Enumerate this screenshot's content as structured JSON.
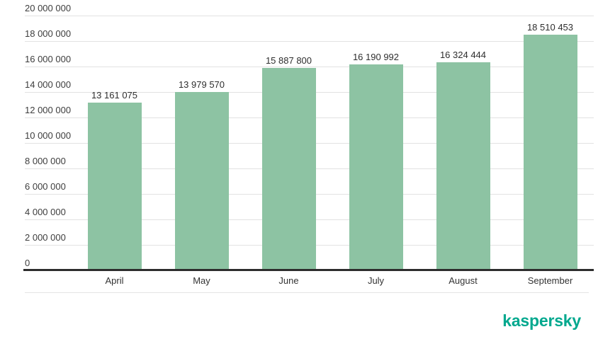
{
  "chart_data": {
    "type": "bar",
    "categories": [
      "April",
      "May",
      "June",
      "July",
      "August",
      "September"
    ],
    "values": [
      13161075,
      13979570,
      15887800,
      16190992,
      16324444,
      18510453
    ],
    "value_labels": [
      "13 161 075",
      "13 979 570",
      "15 887 800",
      "16 190 992",
      "16 324 444",
      "18 510 453"
    ],
    "y_ticks": [
      {
        "value": 0,
        "label": "0"
      },
      {
        "value": 2000000,
        "label": "2 000 000"
      },
      {
        "value": 4000000,
        "label": "4 000 000"
      },
      {
        "value": 6000000,
        "label": "6 000 000"
      },
      {
        "value": 8000000,
        "label": "8 000 000"
      },
      {
        "value": 10000000,
        "label": "10 000 000"
      },
      {
        "value": 12000000,
        "label": "12 000 000"
      },
      {
        "value": 14000000,
        "label": "14 000 000"
      },
      {
        "value": 16000000,
        "label": "16 000 000"
      },
      {
        "value": 18000000,
        "label": "18 000 000"
      },
      {
        "value": 20000000,
        "label": "20 000 000"
      }
    ],
    "ylim": [
      0,
      20000000
    ],
    "bar_color": "#8dc3a3",
    "grid": true,
    "legend": "none",
    "title": "",
    "xlabel": "",
    "ylabel": ""
  },
  "footer": {
    "brand": "kaspersky",
    "brand_color": "#00a88e"
  }
}
